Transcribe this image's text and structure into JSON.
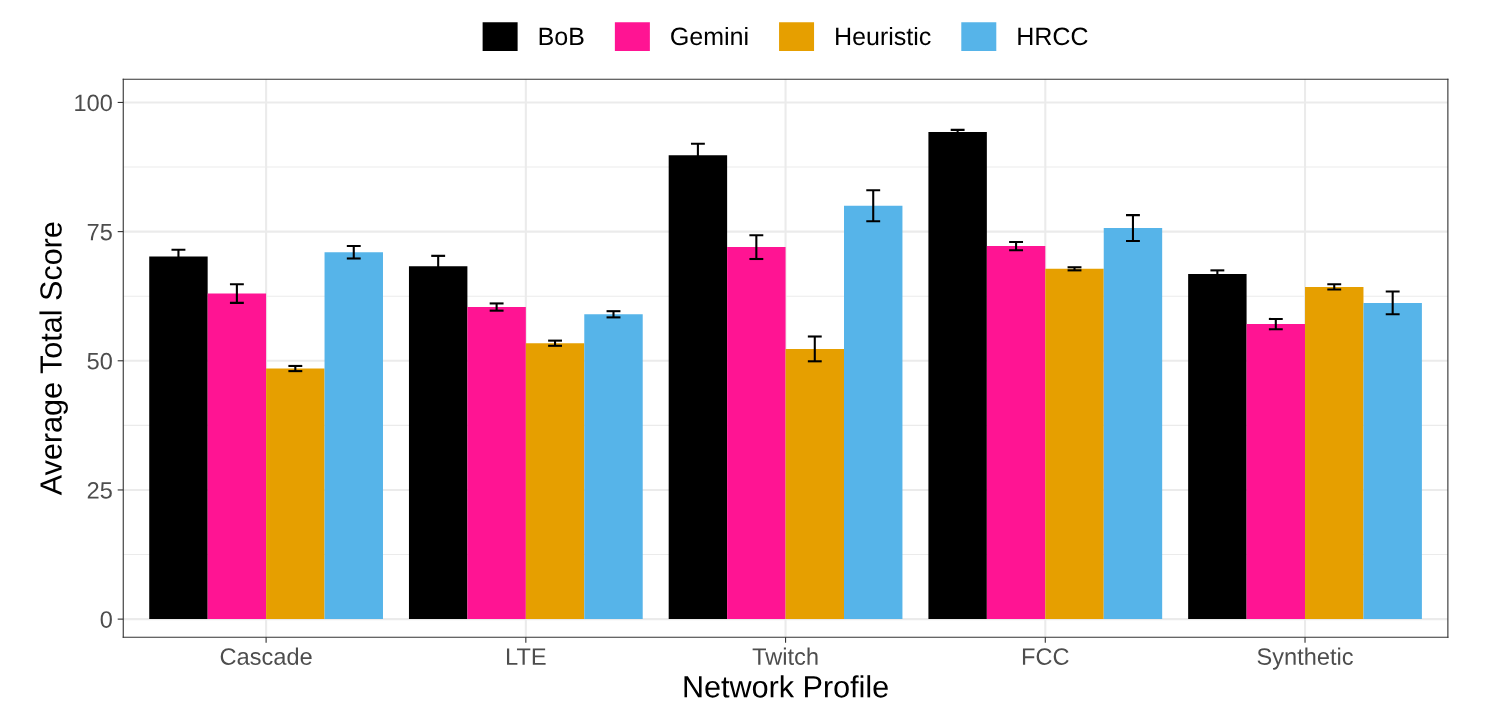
{
  "chart_data": {
    "type": "bar",
    "xlabel": "Network Profile",
    "ylabel": "Average Total Score",
    "categories": [
      "Cascade",
      "LTE",
      "Twitch",
      "FCC",
      "Synthetic"
    ],
    "series": [
      {
        "name": "BoB",
        "color": "#000000",
        "values": [
          70.2,
          68.3,
          89.8,
          94.3,
          66.8
        ],
        "errors": [
          1.3,
          2.0,
          2.2,
          0.4,
          0.7
        ]
      },
      {
        "name": "Gemini",
        "color": "#ff1493",
        "values": [
          63.0,
          60.4,
          72.0,
          72.2,
          57.1
        ],
        "errors": [
          1.8,
          0.7,
          2.3,
          0.8,
          1.0
        ]
      },
      {
        "name": "Heuristic",
        "color": "#e69f00",
        "values": [
          48.5,
          53.4,
          52.3,
          67.8,
          64.3
        ],
        "errors": [
          0.5,
          0.5,
          2.4,
          0.3,
          0.5
        ]
      },
      {
        "name": "HRCC",
        "color": "#56b4e9",
        "values": [
          71.0,
          59.0,
          80.0,
          75.7,
          61.2
        ],
        "errors": [
          1.2,
          0.6,
          3.0,
          2.5,
          2.2
        ]
      }
    ],
    "ylim": [
      -3.5,
      104.5
    ],
    "yticks": [
      0,
      25,
      50,
      75,
      100
    ],
    "grid": true,
    "legend": "top"
  }
}
